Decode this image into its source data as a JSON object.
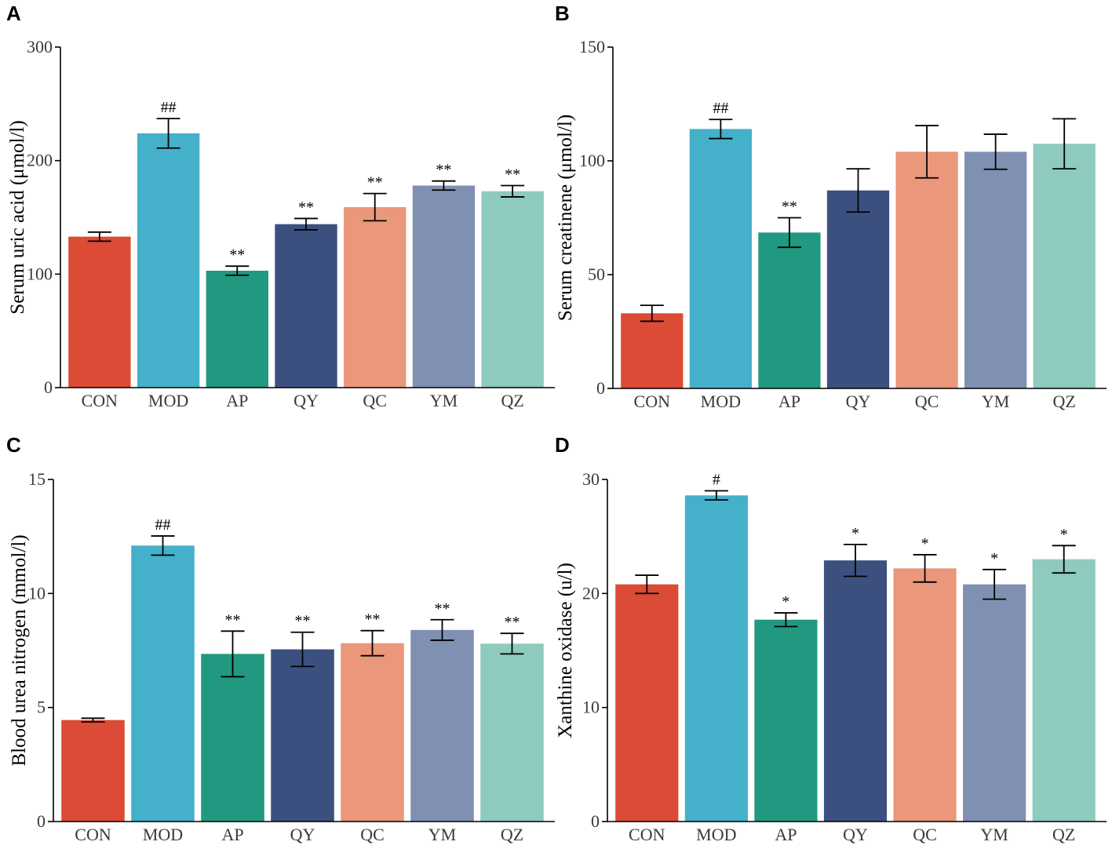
{
  "chart_data": [
    {
      "type": "bar",
      "panel": "A",
      "title": "",
      "xlabel": "",
      "ylabel": "Serum uric acid (μmol/l)",
      "ylim": [
        0,
        300
      ],
      "yticks": [
        0,
        100,
        200,
        300
      ],
      "categories": [
        "CON",
        "MOD",
        "AP",
        "QY",
        "QC",
        "YM",
        "QZ"
      ],
      "values": [
        133,
        224,
        103,
        144,
        159,
        178,
        173
      ],
      "errors": [
        4,
        13,
        4,
        5,
        12,
        4,
        5
      ],
      "significance": [
        "",
        "##",
        "**",
        "**",
        "**",
        "**",
        "**"
      ]
    },
    {
      "type": "bar",
      "panel": "B",
      "title": "",
      "xlabel": "",
      "ylabel": "Serum creatinene (μmol/l)",
      "ylim": [
        0,
        150
      ],
      "yticks": [
        0,
        50,
        100,
        150
      ],
      "categories": [
        "CON",
        "MOD",
        "AP",
        "QY",
        "QC",
        "YM",
        "QZ"
      ],
      "values": [
        33,
        114,
        68.5,
        87,
        104,
        104,
        107.5
      ],
      "errors": [
        3.5,
        4.2,
        6.5,
        9.5,
        11.5,
        7.7,
        11
      ],
      "significance": [
        "",
        "##",
        "**",
        "",
        "",
        "",
        ""
      ]
    },
    {
      "type": "bar",
      "panel": "C",
      "title": "",
      "xlabel": "",
      "ylabel": "Blood urea nitrogen (mmol/l)",
      "ylim": [
        0,
        15
      ],
      "yticks": [
        0,
        5,
        10,
        15
      ],
      "categories": [
        "CON",
        "MOD",
        "AP",
        "QY",
        "QC",
        "YM",
        "QZ"
      ],
      "values": [
        4.45,
        12.1,
        7.35,
        7.55,
        7.82,
        8.4,
        7.8
      ],
      "errors": [
        0.08,
        0.42,
        1.0,
        0.75,
        0.55,
        0.45,
        0.45
      ],
      "significance": [
        "",
        "##",
        "**",
        "**",
        "**",
        "**",
        "**"
      ]
    },
    {
      "type": "bar",
      "panel": "D",
      "title": "",
      "xlabel": "",
      "ylabel": "Xanthine oxidase (u/l)",
      "ylim": [
        0,
        30
      ],
      "yticks": [
        0,
        10,
        20,
        30
      ],
      "categories": [
        "CON",
        "MOD",
        "AP",
        "QY",
        "QC",
        "YM",
        "QZ"
      ],
      "values": [
        20.8,
        28.6,
        17.7,
        22.9,
        22.2,
        20.8,
        23.0
      ],
      "errors": [
        0.8,
        0.4,
        0.6,
        1.4,
        1.2,
        1.3,
        1.2
      ],
      "significance": [
        "",
        "#",
        "*",
        "*",
        "*",
        "*",
        "*"
      ]
    }
  ],
  "colors": [
    "#dc4b35",
    "#45b0c9",
    "#209980",
    "#3c5080",
    "#ea977b",
    "#8090b2",
    "#8ecabe"
  ]
}
